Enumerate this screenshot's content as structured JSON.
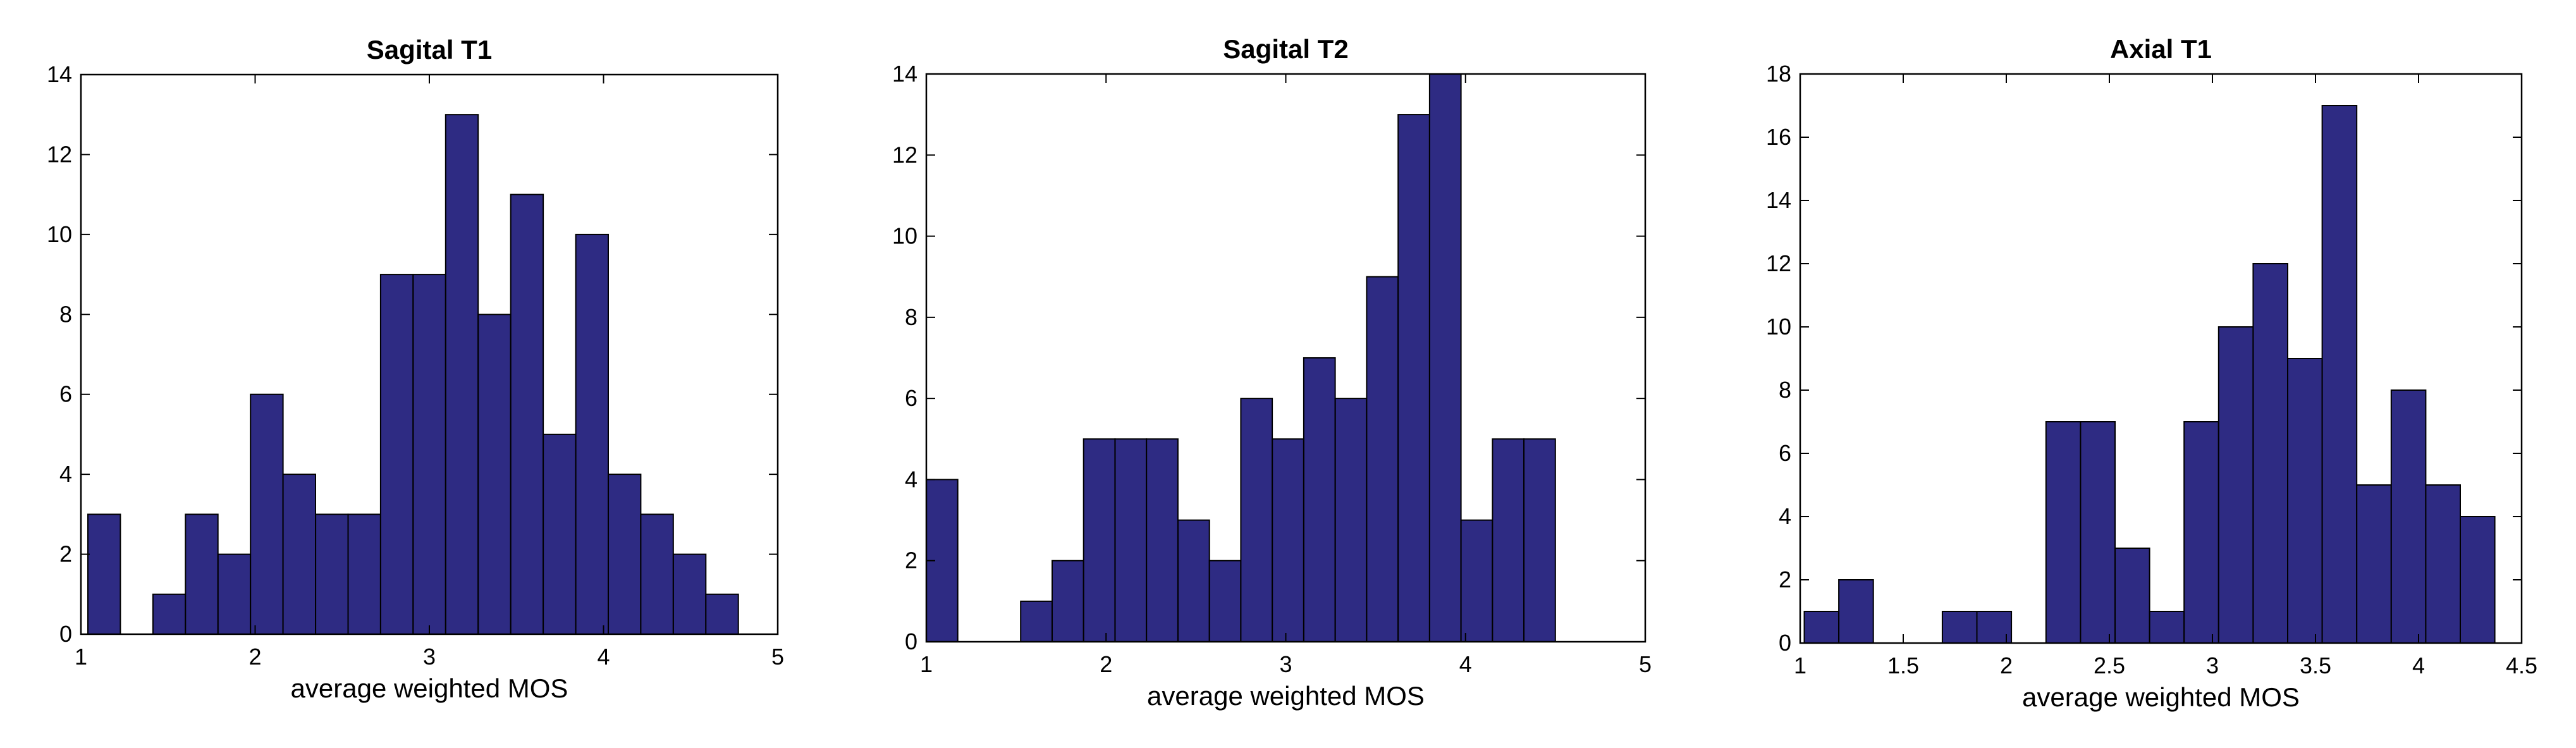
{
  "figure": "histograms of average weighted MOS",
  "colors": {
    "bar_fill": "#2e2b83",
    "bar_edge": "#000000",
    "axes": "#000000",
    "background": "#ffffff"
  },
  "chart_data": [
    {
      "type": "bar",
      "title": "Sagital T1",
      "xlabel": "average weighted MOS",
      "ylabel": "",
      "xlim": [
        1,
        5
      ],
      "ylim": [
        0,
        14
      ],
      "xticks": [
        1,
        2,
        3,
        4,
        5
      ],
      "xtick_labels": [
        "1",
        "2",
        "3",
        "4",
        "5"
      ],
      "yticks": [
        0,
        2,
        4,
        6,
        8,
        10,
        12,
        14
      ],
      "ytick_labels": [
        "0",
        "2",
        "4",
        "6",
        "8",
        "10",
        "12",
        "14"
      ],
      "bin_start": 1.04,
      "bin_width": 0.1867,
      "values": [
        3,
        0,
        1,
        3,
        2,
        6,
        4,
        3,
        3,
        9,
        9,
        13,
        8,
        11,
        5,
        10,
        4,
        3,
        2,
        1
      ],
      "grid": false
    },
    {
      "type": "bar",
      "title": "Sagital T2",
      "xlabel": "average weighted MOS",
      "ylabel": "",
      "xlim": [
        1,
        5
      ],
      "ylim": [
        0,
        14
      ],
      "xticks": [
        1,
        2,
        3,
        4,
        5
      ],
      "xtick_labels": [
        "1",
        "2",
        "3",
        "4",
        "5"
      ],
      "yticks": [
        0,
        2,
        4,
        6,
        8,
        10,
        12,
        14
      ],
      "ytick_labels": [
        "0",
        "2",
        "4",
        "6",
        "8",
        "10",
        "12",
        "14"
      ],
      "bin_start": 1.0,
      "bin_width": 0.175,
      "values": [
        4,
        0,
        0,
        1,
        2,
        5,
        5,
        5,
        3,
        2,
        6,
        5,
        7,
        6,
        9,
        13,
        14,
        3,
        5,
        5
      ],
      "grid": false
    },
    {
      "type": "bar",
      "title": "Axial T1",
      "xlabel": "average weighted MOS",
      "ylabel": "",
      "xlim": [
        1,
        4.5
      ],
      "ylim": [
        0,
        18
      ],
      "xticks": [
        1,
        1.5,
        2,
        2.5,
        3,
        3.5,
        4,
        4.5
      ],
      "xtick_labels": [
        "1",
        "1.5",
        "2",
        "2.5",
        "3",
        "3.5",
        "4",
        "4.5"
      ],
      "yticks": [
        0,
        2,
        4,
        6,
        8,
        10,
        12,
        14,
        16,
        18
      ],
      "ytick_labels": [
        "0",
        "2",
        "4",
        "6",
        "8",
        "10",
        "12",
        "14",
        "16",
        "18"
      ],
      "bin_start": 1.02,
      "bin_width": 0.1675,
      "values": [
        1,
        2,
        0,
        0,
        1,
        1,
        0,
        7,
        7,
        3,
        1,
        7,
        10,
        12,
        9,
        17,
        5,
        8,
        5,
        4
      ],
      "grid": false
    }
  ]
}
